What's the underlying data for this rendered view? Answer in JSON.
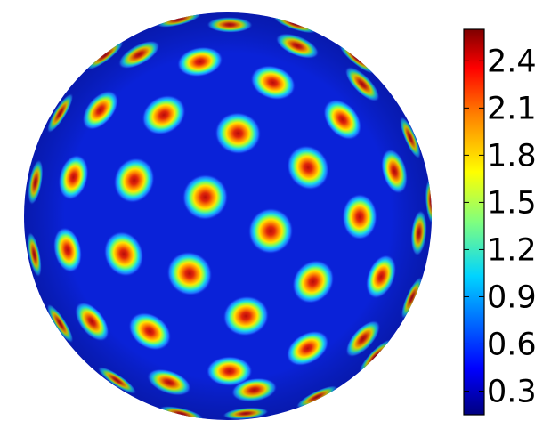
{
  "colorbar": {
    "ticks": [
      "0.3",
      "0.6",
      "0.9",
      "1.2",
      "1.5",
      "1.8",
      "2.1",
      "2.4"
    ],
    "range": [
      0.15,
      2.6
    ],
    "colormap": "jet",
    "colors": [
      "#00007f",
      "#0000ff",
      "#007fff",
      "#00ffff",
      "#7fff7f",
      "#ffff00",
      "#ff7f00",
      "#ff0000",
      "#7f0000"
    ]
  },
  "sphere": {
    "background_color": "#0a22d8",
    "spot_layers": [
      "#14c8e6",
      "#9ee632",
      "#ffd000",
      "#ff6a00",
      "#d51c0a"
    ]
  }
}
